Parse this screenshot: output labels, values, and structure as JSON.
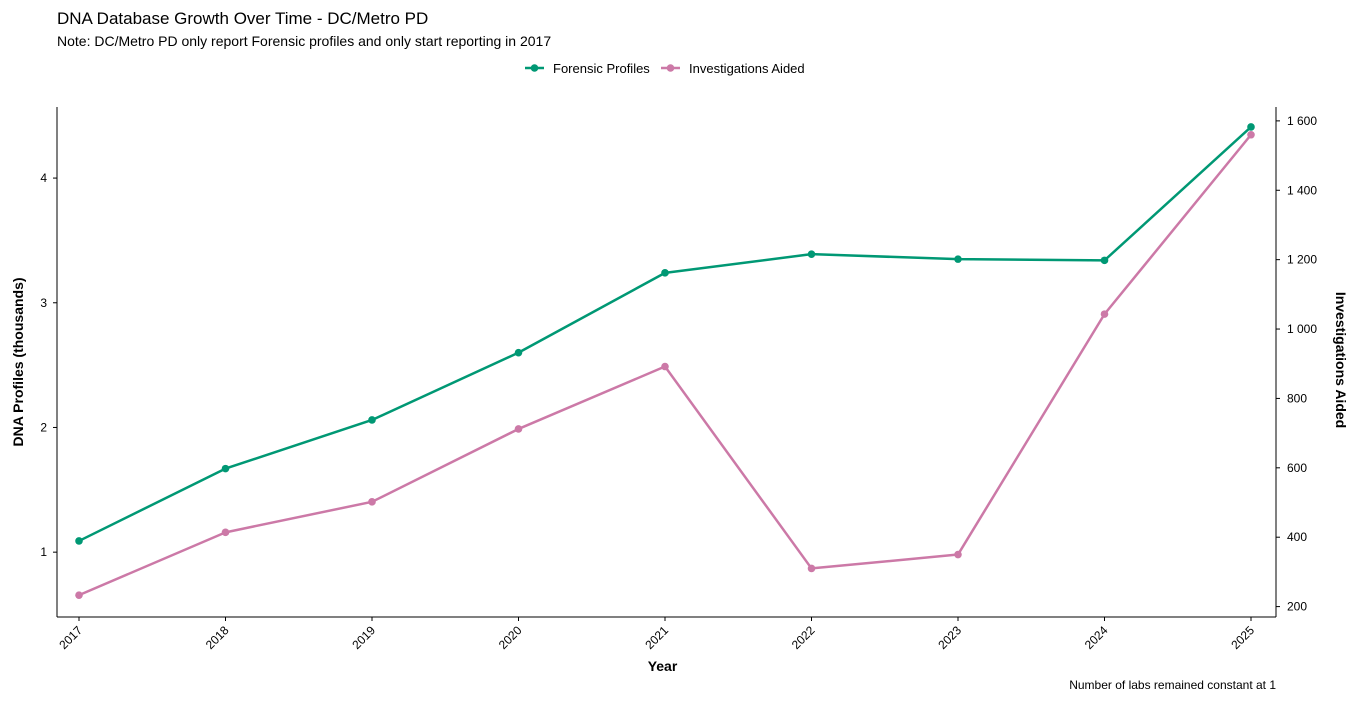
{
  "chart_data": {
    "type": "line",
    "title": "DNA Database Growth Over Time - DC/Metro PD",
    "subtitle": "Note: DC/Metro PD only report Forensic profiles and only start reporting in 2017",
    "caption": "Number of labs remained constant at 1",
    "xlabel": "Year",
    "ylabel": "DNA Profiles (thousands)",
    "y2label": "Investigations Aided",
    "categories": [
      "2017",
      "2018",
      "2019",
      "2020",
      "2021",
      "2022",
      "2023",
      "2024",
      "2025"
    ],
    "series": [
      {
        "name": "Forensic Profiles",
        "axis": "left",
        "color": "#009874",
        "values": [
          1.09,
          1.67,
          2.06,
          2.6,
          3.24,
          3.39,
          3.35,
          3.34,
          4.41
        ]
      },
      {
        "name": "Investigations Aided",
        "axis": "right",
        "color": "#cc79a7",
        "values": [
          233,
          414,
          502,
          712,
          892,
          310,
          350,
          1043,
          1560
        ]
      }
    ],
    "ylim": [
      0.48,
      4.57
    ],
    "y2lim": [
      170,
      1640
    ],
    "yticks": [
      1,
      2,
      3,
      4
    ],
    "y2ticks": [
      200,
      400,
      600,
      800,
      1000,
      1200,
      1400,
      1600
    ],
    "y2ticklabels": [
      "200",
      "400",
      "600",
      "800",
      "1 000",
      "1 200",
      "1 400",
      "1 600"
    ],
    "legend_position": "top",
    "grid": false
  }
}
